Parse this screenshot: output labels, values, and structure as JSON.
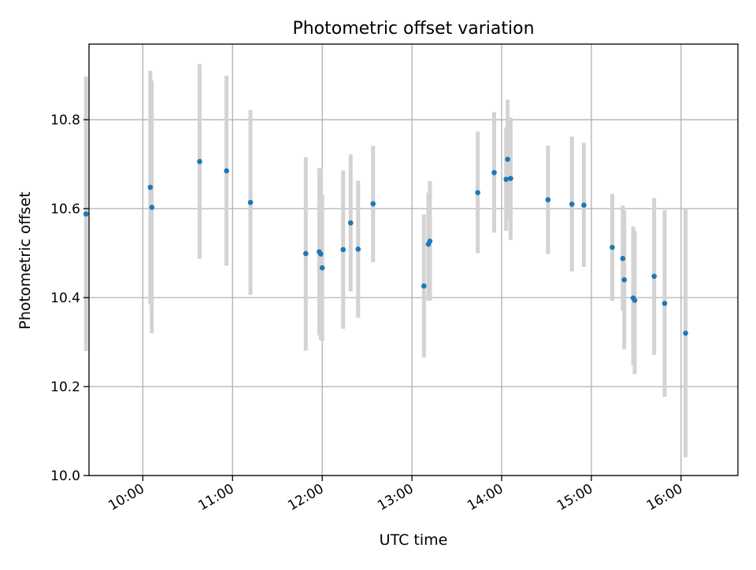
{
  "chart_data": {
    "type": "scatter",
    "title": "Photometric offset variation",
    "xlabel": "UTC time",
    "ylabel": "Photometric offset",
    "x_axis_type": "time",
    "xlim": [
      "09:24",
      "16:38"
    ],
    "ylim": [
      10.0,
      10.97
    ],
    "x_ticks": [
      "10:00",
      "11:00",
      "12:00",
      "13:00",
      "14:00",
      "15:00",
      "16:00"
    ],
    "y_ticks": [
      "10.0",
      "10.2",
      "10.4",
      "10.6",
      "10.8"
    ],
    "grid": true,
    "legend": "none",
    "colors": {
      "points": "#1f77b4",
      "error_bars": "#d3d3d3",
      "grid": "#b0b0b0"
    },
    "series": [
      {
        "points": [
          {
            "x": "09:22",
            "y": 10.588,
            "ylow": 10.28,
            "yhigh": 10.897
          },
          {
            "x": "10:05",
            "y": 10.648,
            "ylow": 10.385,
            "yhigh": 10.91
          },
          {
            "x": "10:06",
            "y": 10.603,
            "ylow": 10.32,
            "yhigh": 10.888
          },
          {
            "x": "10:38",
            "y": 10.706,
            "ylow": 10.487,
            "yhigh": 10.925
          },
          {
            "x": "10:56",
            "y": 10.685,
            "ylow": 10.472,
            "yhigh": 10.899
          },
          {
            "x": "11:12",
            "y": 10.614,
            "ylow": 10.406,
            "yhigh": 10.822
          },
          {
            "x": "11:49",
            "y": 10.499,
            "ylow": 10.281,
            "yhigh": 10.716
          },
          {
            "x": "11:58",
            "y": 10.503,
            "ylow": 10.315,
            "yhigh": 10.691
          },
          {
            "x": "11:59",
            "y": 10.498,
            "ylow": 10.305,
            "yhigh": 10.69
          },
          {
            "x": "12:00",
            "y": 10.467,
            "ylow": 10.303,
            "yhigh": 10.631
          },
          {
            "x": "12:14",
            "y": 10.508,
            "ylow": 10.33,
            "yhigh": 10.686
          },
          {
            "x": "12:19",
            "y": 10.568,
            "ylow": 10.414,
            "yhigh": 10.722
          },
          {
            "x": "12:24",
            "y": 10.509,
            "ylow": 10.355,
            "yhigh": 10.663
          },
          {
            "x": "12:34",
            "y": 10.611,
            "ylow": 10.48,
            "yhigh": 10.741
          },
          {
            "x": "13:08",
            "y": 10.426,
            "ylow": 10.265,
            "yhigh": 10.587
          },
          {
            "x": "13:11",
            "y": 10.52,
            "ylow": 10.393,
            "yhigh": 10.636
          },
          {
            "x": "13:12",
            "y": 10.527,
            "ylow": 10.393,
            "yhigh": 10.662
          },
          {
            "x": "13:44",
            "y": 10.636,
            "ylow": 10.5,
            "yhigh": 10.773
          },
          {
            "x": "13:55",
            "y": 10.681,
            "ylow": 10.546,
            "yhigh": 10.817
          },
          {
            "x": "14:03",
            "y": 10.666,
            "ylow": 10.55,
            "yhigh": 10.782
          },
          {
            "x": "14:04",
            "y": 10.711,
            "ylow": 10.576,
            "yhigh": 10.845
          },
          {
            "x": "14:06",
            "y": 10.668,
            "ylow": 10.53,
            "yhigh": 10.805
          },
          {
            "x": "14:31",
            "y": 10.62,
            "ylow": 10.498,
            "yhigh": 10.742
          },
          {
            "x": "14:47",
            "y": 10.61,
            "ylow": 10.459,
            "yhigh": 10.762
          },
          {
            "x": "14:55",
            "y": 10.608,
            "ylow": 10.469,
            "yhigh": 10.748
          },
          {
            "x": "15:14",
            "y": 10.513,
            "ylow": 10.393,
            "yhigh": 10.633
          },
          {
            "x": "15:21",
            "y": 10.488,
            "ylow": 10.37,
            "yhigh": 10.607
          },
          {
            "x": "15:22",
            "y": 10.44,
            "ylow": 10.284,
            "yhigh": 10.596
          },
          {
            "x": "15:28",
            "y": 10.399,
            "ylow": 10.248,
            "yhigh": 10.56
          },
          {
            "x": "15:29",
            "y": 10.394,
            "ylow": 10.228,
            "yhigh": 10.55
          },
          {
            "x": "15:42",
            "y": 10.448,
            "ylow": 10.271,
            "yhigh": 10.624
          },
          {
            "x": "15:49",
            "y": 10.387,
            "ylow": 10.177,
            "yhigh": 10.597
          },
          {
            "x": "16:03",
            "y": 10.32,
            "ylow": 10.041,
            "yhigh": 10.598
          }
        ]
      }
    ]
  }
}
